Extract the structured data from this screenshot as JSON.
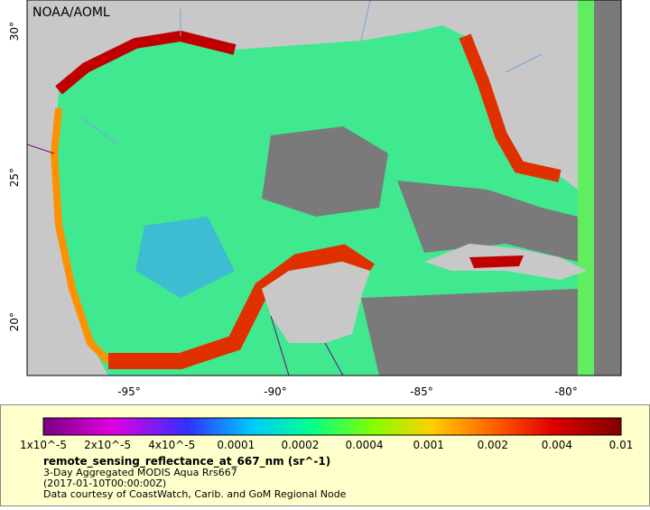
{
  "map": {
    "watermark": "NOAA/AOML",
    "lat_labels": [
      "30°",
      "25°",
      "20°"
    ],
    "lon_labels": [
      "-95°",
      "-90°",
      "-85°",
      "-80°"
    ]
  },
  "legend": {
    "tick_labels": [
      "1x10^-5",
      "2x10^-5",
      "4x10^-5",
      "0.0001",
      "0.0002",
      "0.0004",
      "0.001",
      "0.002",
      "0.004",
      "0.01"
    ],
    "variable": "remote_sensing_reflectance_at_667_nm (sr^-1)",
    "description": "3-Day Aggregated MODIS Aqua Rrs667",
    "time": "(2017-01-10T00:00:00Z)",
    "credit": "Data courtesy of CoastWatch, Carib. and GoM Regional Node"
  }
}
